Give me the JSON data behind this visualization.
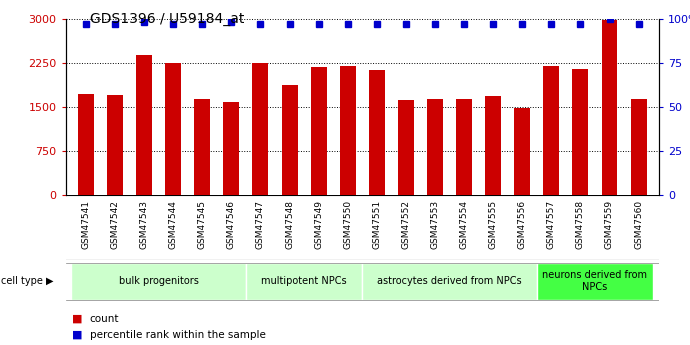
{
  "title": "GDS1396 / U59184_at",
  "samples": [
    "GSM47541",
    "GSM47542",
    "GSM47543",
    "GSM47544",
    "GSM47545",
    "GSM47546",
    "GSM47547",
    "GSM47548",
    "GSM47549",
    "GSM47550",
    "GSM47551",
    "GSM47552",
    "GSM47553",
    "GSM47554",
    "GSM47555",
    "GSM47556",
    "GSM47557",
    "GSM47558",
    "GSM47559",
    "GSM47560"
  ],
  "counts": [
    1720,
    1700,
    2380,
    2250,
    1640,
    1580,
    2250,
    1870,
    2180,
    2200,
    2130,
    1610,
    1640,
    1640,
    1680,
    1490,
    2200,
    2150,
    2990,
    1640
  ],
  "percentiles": [
    97,
    97,
    98,
    97,
    97,
    98,
    97,
    97,
    97,
    97,
    97,
    97,
    97,
    97,
    97,
    97,
    97,
    97,
    100,
    97
  ],
  "bar_color": "#cc0000",
  "dot_color": "#0000cc",
  "ylim_left": [
    0,
    3000
  ],
  "ylim_right": [
    0,
    100
  ],
  "yticks_left": [
    0,
    750,
    1500,
    2250,
    3000
  ],
  "ytick_labels_left": [
    "0",
    "750",
    "1500",
    "2250",
    "3000"
  ],
  "yticks_right": [
    0,
    25,
    50,
    75,
    100
  ],
  "ytick_labels_right": [
    "0",
    "25",
    "50",
    "75",
    "100%"
  ],
  "grid_color": "#000000",
  "background_color": "#ffffff",
  "cell_groups": [
    {
      "label": "bulk progenitors",
      "start": 0,
      "end": 6,
      "color": "#ccffcc"
    },
    {
      "label": "multipotent NPCs",
      "start": 6,
      "end": 10,
      "color": "#ccffcc"
    },
    {
      "label": "astrocytes derived from NPCs",
      "start": 10,
      "end": 16,
      "color": "#ccffcc"
    },
    {
      "label": "neurons derived from\nNPCs",
      "start": 16,
      "end": 20,
      "color": "#44ff44"
    }
  ],
  "legend_count_label": "count",
  "legend_percentile_label": "percentile rank within the sample",
  "cell_type_label": "cell type",
  "tick_bg_color": "#c8c8c8",
  "bar_width": 0.55,
  "dot_size": 5
}
